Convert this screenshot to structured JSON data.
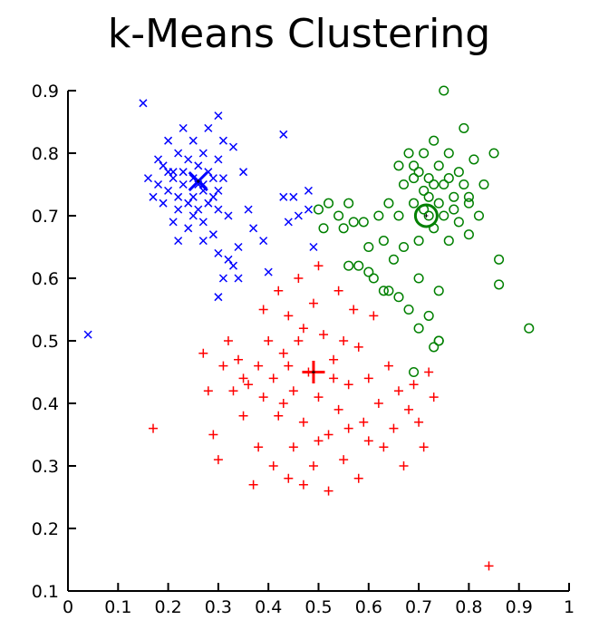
{
  "chart_data": {
    "type": "scatter",
    "title": "k-Means Clustering",
    "xlabel": "",
    "ylabel": "",
    "xlim": [
      0,
      1
    ],
    "ylim": [
      0.1,
      0.9
    ],
    "xticks": [
      "0",
      "0.1",
      "0.2",
      "0.3",
      "0.4",
      "0.5",
      "0.6",
      "0.7",
      "0.8",
      "0.9",
      "1"
    ],
    "yticks": [
      "0.1",
      "0.2",
      "0.3",
      "0.4",
      "0.5",
      "0.6",
      "0.7",
      "0.8",
      "0.9"
    ],
    "grid": false,
    "series": [
      {
        "marker": "x",
        "color": "#0000ff",
        "points": [
          [
            0.04,
            0.51
          ],
          [
            0.15,
            0.88
          ],
          [
            0.16,
            0.76
          ],
          [
            0.17,
            0.73
          ],
          [
            0.18,
            0.79
          ],
          [
            0.18,
            0.75
          ],
          [
            0.19,
            0.72
          ],
          [
            0.19,
            0.78
          ],
          [
            0.2,
            0.82
          ],
          [
            0.2,
            0.77
          ],
          [
            0.2,
            0.74
          ],
          [
            0.21,
            0.69
          ],
          [
            0.21,
            0.76
          ],
          [
            0.22,
            0.8
          ],
          [
            0.22,
            0.73
          ],
          [
            0.22,
            0.71
          ],
          [
            0.23,
            0.84
          ],
          [
            0.23,
            0.77
          ],
          [
            0.23,
            0.75
          ],
          [
            0.24,
            0.79
          ],
          [
            0.24,
            0.72
          ],
          [
            0.24,
            0.68
          ],
          [
            0.25,
            0.82
          ],
          [
            0.25,
            0.76
          ],
          [
            0.25,
            0.73
          ],
          [
            0.26,
            0.78
          ],
          [
            0.26,
            0.75
          ],
          [
            0.26,
            0.71
          ],
          [
            0.27,
            0.8
          ],
          [
            0.27,
            0.74
          ],
          [
            0.27,
            0.69
          ],
          [
            0.28,
            0.77
          ],
          [
            0.28,
            0.72
          ],
          [
            0.28,
            0.84
          ],
          [
            0.29,
            0.76
          ],
          [
            0.29,
            0.73
          ],
          [
            0.29,
            0.67
          ],
          [
            0.3,
            0.86
          ],
          [
            0.3,
            0.79
          ],
          [
            0.3,
            0.74
          ],
          [
            0.3,
            0.71
          ],
          [
            0.31,
            0.76
          ],
          [
            0.31,
            0.82
          ],
          [
            0.32,
            0.7
          ],
          [
            0.33,
            0.81
          ],
          [
            0.3,
            0.64
          ],
          [
            0.31,
            0.6
          ],
          [
            0.3,
            0.57
          ],
          [
            0.32,
            0.63
          ],
          [
            0.34,
            0.65
          ],
          [
            0.33,
            0.62
          ],
          [
            0.35,
            0.77
          ],
          [
            0.36,
            0.71
          ],
          [
            0.37,
            0.68
          ],
          [
            0.39,
            0.66
          ],
          [
            0.4,
            0.61
          ],
          [
            0.43,
            0.83
          ],
          [
            0.43,
            0.73
          ],
          [
            0.44,
            0.69
          ],
          [
            0.45,
            0.73
          ],
          [
            0.46,
            0.7
          ],
          [
            0.48,
            0.74
          ],
          [
            0.48,
            0.71
          ],
          [
            0.49,
            0.65
          ],
          [
            0.27,
            0.66
          ],
          [
            0.25,
            0.7
          ],
          [
            0.22,
            0.66
          ],
          [
            0.34,
            0.6
          ],
          [
            0.21,
            0.77
          ],
          [
            0.27,
            0.75
          ]
        ]
      },
      {
        "marker": "o",
        "color": "#008000",
        "points": [
          [
            0.5,
            0.71
          ],
          [
            0.51,
            0.68
          ],
          [
            0.52,
            0.72
          ],
          [
            0.54,
            0.7
          ],
          [
            0.55,
            0.68
          ],
          [
            0.56,
            0.72
          ],
          [
            0.57,
            0.69
          ],
          [
            0.58,
            0.62
          ],
          [
            0.59,
            0.69
          ],
          [
            0.6,
            0.65
          ],
          [
            0.61,
            0.6
          ],
          [
            0.62,
            0.7
          ],
          [
            0.63,
            0.66
          ],
          [
            0.64,
            0.72
          ],
          [
            0.64,
            0.58
          ],
          [
            0.65,
            0.63
          ],
          [
            0.66,
            0.78
          ],
          [
            0.66,
            0.7
          ],
          [
            0.67,
            0.75
          ],
          [
            0.67,
            0.65
          ],
          [
            0.68,
            0.55
          ],
          [
            0.69,
            0.78
          ],
          [
            0.69,
            0.72
          ],
          [
            0.7,
            0.66
          ],
          [
            0.7,
            0.6
          ],
          [
            0.7,
            0.52
          ],
          [
            0.71,
            0.8
          ],
          [
            0.71,
            0.74
          ],
          [
            0.72,
            0.7
          ],
          [
            0.72,
            0.76
          ],
          [
            0.73,
            0.82
          ],
          [
            0.73,
            0.68
          ],
          [
            0.74,
            0.78
          ],
          [
            0.74,
            0.72
          ],
          [
            0.74,
            0.58
          ],
          [
            0.74,
            0.5
          ],
          [
            0.75,
            0.75
          ],
          [
            0.75,
            0.7
          ],
          [
            0.75,
            0.9
          ],
          [
            0.76,
            0.8
          ],
          [
            0.76,
            0.66
          ],
          [
            0.77,
            0.73
          ],
          [
            0.78,
            0.77
          ],
          [
            0.78,
            0.69
          ],
          [
            0.79,
            0.84
          ],
          [
            0.8,
            0.72
          ],
          [
            0.8,
            0.67
          ],
          [
            0.81,
            0.79
          ],
          [
            0.82,
            0.7
          ],
          [
            0.83,
            0.75
          ],
          [
            0.85,
            0.8
          ],
          [
            0.86,
            0.63
          ],
          [
            0.86,
            0.59
          ],
          [
            0.92,
            0.52
          ],
          [
            0.68,
            0.8
          ],
          [
            0.69,
            0.76
          ],
          [
            0.7,
            0.77
          ],
          [
            0.71,
            0.71
          ],
          [
            0.72,
            0.73
          ],
          [
            0.73,
            0.75
          ],
          [
            0.76,
            0.76
          ],
          [
            0.77,
            0.71
          ],
          [
            0.79,
            0.75
          ],
          [
            0.8,
            0.73
          ],
          [
            0.73,
            0.49
          ],
          [
            0.74,
            0.5
          ],
          [
            0.69,
            0.45
          ],
          [
            0.72,
            0.54
          ],
          [
            0.66,
            0.57
          ],
          [
            0.63,
            0.58
          ],
          [
            0.6,
            0.61
          ],
          [
            0.56,
            0.62
          ]
        ]
      },
      {
        "marker": "+",
        "color": "#ff0000",
        "points": [
          [
            0.17,
            0.36
          ],
          [
            0.27,
            0.48
          ],
          [
            0.28,
            0.42
          ],
          [
            0.29,
            0.35
          ],
          [
            0.3,
            0.31
          ],
          [
            0.31,
            0.46
          ],
          [
            0.32,
            0.5
          ],
          [
            0.33,
            0.42
          ],
          [
            0.34,
            0.47
          ],
          [
            0.35,
            0.38
          ],
          [
            0.36,
            0.43
          ],
          [
            0.37,
            0.27
          ],
          [
            0.38,
            0.33
          ],
          [
            0.39,
            0.55
          ],
          [
            0.4,
            0.5
          ],
          [
            0.41,
            0.44
          ],
          [
            0.41,
            0.3
          ],
          [
            0.42,
            0.58
          ],
          [
            0.42,
            0.38
          ],
          [
            0.43,
            0.48
          ],
          [
            0.44,
            0.54
          ],
          [
            0.44,
            0.28
          ],
          [
            0.45,
            0.33
          ],
          [
            0.45,
            0.42
          ],
          [
            0.46,
            0.6
          ],
          [
            0.46,
            0.5
          ],
          [
            0.47,
            0.37
          ],
          [
            0.48,
            0.45
          ],
          [
            0.49,
            0.56
          ],
          [
            0.49,
            0.3
          ],
          [
            0.5,
            0.62
          ],
          [
            0.5,
            0.41
          ],
          [
            0.51,
            0.51
          ],
          [
            0.52,
            0.35
          ],
          [
            0.52,
            0.26
          ],
          [
            0.53,
            0.47
          ],
          [
            0.54,
            0.58
          ],
          [
            0.54,
            0.39
          ],
          [
            0.55,
            0.31
          ],
          [
            0.56,
            0.43
          ],
          [
            0.57,
            0.55
          ],
          [
            0.58,
            0.49
          ],
          [
            0.58,
            0.28
          ],
          [
            0.59,
            0.37
          ],
          [
            0.6,
            0.44
          ],
          [
            0.61,
            0.54
          ],
          [
            0.62,
            0.4
          ],
          [
            0.63,
            0.33
          ],
          [
            0.64,
            0.46
          ],
          [
            0.65,
            0.36
          ],
          [
            0.66,
            0.42
          ],
          [
            0.67,
            0.3
          ],
          [
            0.68,
            0.39
          ],
          [
            0.69,
            0.43
          ],
          [
            0.7,
            0.37
          ],
          [
            0.71,
            0.33
          ],
          [
            0.72,
            0.45
          ],
          [
            0.73,
            0.41
          ],
          [
            0.84,
            0.14
          ],
          [
            0.49,
            0.45
          ],
          [
            0.44,
            0.46
          ],
          [
            0.39,
            0.41
          ],
          [
            0.35,
            0.44
          ],
          [
            0.47,
            0.52
          ],
          [
            0.53,
            0.44
          ],
          [
            0.56,
            0.36
          ],
          [
            0.5,
            0.34
          ],
          [
            0.43,
            0.4
          ],
          [
            0.38,
            0.46
          ],
          [
            0.55,
            0.5
          ],
          [
            0.6,
            0.34
          ],
          [
            0.47,
            0.27
          ]
        ]
      }
    ],
    "centroids": [
      {
        "x": 0.26,
        "y": 0.755,
        "marker": "x",
        "color": "#0000ff"
      },
      {
        "x": 0.715,
        "y": 0.7,
        "marker": "o",
        "color": "#008000"
      },
      {
        "x": 0.49,
        "y": 0.45,
        "marker": "+",
        "color": "#ff0000"
      }
    ]
  }
}
